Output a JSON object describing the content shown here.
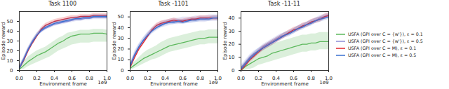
{
  "chart_data": [
    {
      "type": "line",
      "title": "Task 1100",
      "xlabel": "Environment frame",
      "ylabel": "Episode reward",
      "annotations": [
        "1e9"
      ],
      "grid": false,
      "x": [
        0,
        0.05,
        0.1,
        0.15,
        0.2,
        0.25,
        0.3,
        0.35,
        0.4,
        0.45,
        0.5,
        0.55,
        0.6,
        0.65,
        0.7,
        0.75,
        0.8,
        0.85,
        0.9,
        0.95,
        1.0
      ],
      "xlim": [
        0,
        1
      ],
      "xticks": [
        {
          "value": 0,
          "label": "0.0"
        },
        {
          "value": 0.2,
          "label": "0.2"
        },
        {
          "value": 0.4,
          "label": "0.4"
        },
        {
          "value": 0.6,
          "label": "0.6"
        },
        {
          "value": 0.8,
          "label": "0.8"
        },
        {
          "value": 1,
          "label": "1.0"
        }
      ],
      "ylim": [
        0,
        60
      ],
      "yticks": [
        0,
        10,
        20,
        30,
        40,
        50
      ],
      "series": [
        {
          "name": "USFA (GPI over C = {w'}), ε = 0.1",
          "color": "#5cb85c",
          "values": [
            1,
            5,
            9,
            12,
            15,
            17,
            19,
            22,
            25,
            28,
            30,
            33,
            35,
            36,
            37,
            37,
            37,
            38,
            38,
            38,
            37
          ],
          "lower": [
            0,
            1,
            4,
            6,
            8,
            10,
            12,
            14,
            17,
            20,
            22,
            24,
            26,
            27,
            28,
            28,
            28,
            29,
            29,
            29,
            29
          ],
          "upper": [
            3,
            9,
            14,
            17,
            20,
            22,
            24,
            27,
            30,
            33,
            35,
            38,
            39,
            40,
            41,
            41,
            41,
            42,
            42,
            42,
            41
          ]
        },
        {
          "name": "USFA (GPI over C = {w'}), ε = 0.5",
          "color": "#8e8ed6",
          "values": [
            3,
            12,
            22,
            30,
            36,
            40,
            43,
            45,
            47,
            48,
            49,
            50,
            51,
            52,
            52,
            53,
            53,
            54,
            54,
            54,
            54
          ],
          "lower": [
            1,
            10,
            20,
            28,
            34,
            38,
            41,
            43,
            45,
            46,
            47,
            48,
            49,
            50,
            50,
            51,
            51,
            52,
            52,
            52,
            52
          ],
          "upper": [
            5,
            14,
            24,
            32,
            38,
            42,
            45,
            47,
            49,
            50,
            51,
            52,
            53,
            54,
            54,
            55,
            55,
            56,
            56,
            56,
            56
          ]
        },
        {
          "name": "USFA (GPI over C = M), ε = 0.1",
          "color": "#e2252b",
          "values": [
            2,
            10,
            20,
            28,
            35,
            42,
            46,
            48,
            50,
            51,
            52,
            53,
            54,
            54,
            55,
            55,
            55,
            56,
            56,
            56,
            56
          ],
          "lower": [
            0,
            8,
            18,
            26,
            33,
            40,
            44,
            46,
            48,
            49,
            50,
            51,
            52,
            52,
            53,
            53,
            53,
            54,
            54,
            54,
            54
          ],
          "upper": [
            4,
            12,
            22,
            30,
            37,
            44,
            48,
            50,
            52,
            53,
            54,
            55,
            56,
            56,
            57,
            57,
            57,
            58,
            58,
            58,
            58
          ]
        },
        {
          "name": "USFA (GPI over C = M), ε = 0.5",
          "color": "#3a6fd0",
          "values": [
            2,
            11,
            21,
            29,
            36,
            41,
            44,
            46,
            48,
            49,
            50,
            51,
            52,
            53,
            53,
            54,
            54,
            55,
            55,
            55,
            55
          ],
          "lower": [
            0,
            9,
            19,
            27,
            34,
            39,
            42,
            44,
            46,
            47,
            48,
            49,
            50,
            51,
            51,
            52,
            52,
            53,
            53,
            53,
            53
          ],
          "upper": [
            4,
            13,
            23,
            31,
            38,
            43,
            46,
            48,
            50,
            51,
            52,
            53,
            54,
            55,
            55,
            56,
            56,
            57,
            57,
            57,
            57
          ]
        }
      ]
    },
    {
      "type": "line",
      "title": "Task -1101",
      "xlabel": "Environment frame",
      "ylabel": "Episode reward",
      "annotations": [
        "1e9"
      ],
      "grid": false,
      "x": [
        0,
        0.05,
        0.1,
        0.15,
        0.2,
        0.25,
        0.3,
        0.35,
        0.4,
        0.45,
        0.5,
        0.55,
        0.6,
        0.65,
        0.7,
        0.75,
        0.8,
        0.85,
        0.9,
        0.95,
        1.0
      ],
      "xlim": [
        0,
        1
      ],
      "xticks": [
        {
          "value": 0,
          "label": "0.0"
        },
        {
          "value": 0.2,
          "label": "0.2"
        },
        {
          "value": 0.4,
          "label": "0.4"
        },
        {
          "value": 0.6,
          "label": "0.6"
        },
        {
          "value": 0.8,
          "label": "0.8"
        },
        {
          "value": 1,
          "label": "1.0"
        }
      ],
      "ylim": [
        0,
        55
      ],
      "yticks": [
        0,
        10,
        20,
        30,
        40,
        50
      ],
      "series": [
        {
          "name": "USFA (GPI over C = {w'}), ε = 0.1",
          "color": "#5cb85c",
          "values": [
            2,
            5,
            8,
            11,
            13,
            15,
            17,
            19,
            21,
            23,
            24,
            25,
            26,
            27,
            28,
            29,
            30,
            30,
            31,
            31,
            31
          ],
          "lower": [
            0,
            2,
            4,
            6,
            8,
            10,
            11,
            13,
            15,
            17,
            18,
            19,
            20,
            21,
            22,
            23,
            24,
            24,
            25,
            25,
            25
          ],
          "upper": [
            4,
            8,
            12,
            16,
            19,
            21,
            23,
            26,
            28,
            30,
            31,
            32,
            33,
            34,
            35,
            36,
            37,
            37,
            38,
            38,
            38
          ]
        },
        {
          "name": "USFA (GPI over C = {w'}), ε = 0.5",
          "color": "#8e8ed6",
          "values": [
            5,
            15,
            22,
            28,
            33,
            37,
            40,
            43,
            44,
            45,
            46,
            46,
            47,
            47,
            47,
            48,
            48,
            48,
            49,
            49,
            49
          ],
          "lower": [
            3,
            12,
            19,
            25,
            30,
            34,
            37,
            40,
            41,
            42,
            43,
            43,
            44,
            44,
            44,
            45,
            45,
            45,
            46,
            46,
            46
          ],
          "upper": [
            7,
            18,
            25,
            31,
            36,
            40,
            43,
            46,
            47,
            48,
            49,
            49,
            50,
            50,
            50,
            51,
            51,
            51,
            52,
            52,
            52
          ]
        },
        {
          "name": "USFA (GPI over C = M), ε = 0.1",
          "color": "#e2252b",
          "values": [
            3,
            12,
            20,
            26,
            32,
            38,
            42,
            44,
            45,
            46,
            47,
            46,
            46,
            47,
            48,
            48,
            49,
            49,
            49,
            49,
            49
          ],
          "lower": [
            1,
            10,
            18,
            24,
            30,
            36,
            40,
            42,
            43,
            44,
            45,
            44,
            44,
            45,
            46,
            46,
            47,
            47,
            47,
            47,
            47
          ],
          "upper": [
            5,
            14,
            22,
            28,
            34,
            40,
            44,
            46,
            47,
            48,
            49,
            48,
            48,
            49,
            50,
            50,
            51,
            51,
            51,
            51,
            51
          ]
        },
        {
          "name": "USFA (GPI over C = M), ε = 0.5",
          "color": "#3a6fd0",
          "values": [
            4,
            14,
            22,
            28,
            33,
            37,
            40,
            42,
            44,
            45,
            45,
            46,
            45,
            46,
            47,
            47,
            48,
            48,
            48,
            49,
            49
          ],
          "lower": [
            2,
            12,
            20,
            26,
            31,
            35,
            38,
            40,
            42,
            43,
            43,
            44,
            43,
            44,
            45,
            45,
            46,
            46,
            46,
            47,
            47
          ],
          "upper": [
            6,
            16,
            24,
            30,
            35,
            39,
            42,
            44,
            46,
            47,
            47,
            48,
            47,
            48,
            49,
            49,
            50,
            50,
            50,
            51,
            51
          ]
        }
      ]
    },
    {
      "type": "line",
      "title": "Task -11-11",
      "xlabel": "Environment frame",
      "ylabel": "Episode reward",
      "annotations": [
        "1e9"
      ],
      "grid": false,
      "legend": "right",
      "x": [
        0,
        0.05,
        0.1,
        0.15,
        0.2,
        0.25,
        0.3,
        0.35,
        0.4,
        0.45,
        0.5,
        0.55,
        0.6,
        0.65,
        0.7,
        0.75,
        0.8,
        0.85,
        0.9,
        0.95,
        1.0
      ],
      "xlim": [
        0,
        1
      ],
      "xticks": [
        {
          "value": 0,
          "label": "0.0"
        },
        {
          "value": 0.2,
          "label": "0.2"
        },
        {
          "value": 0.4,
          "label": "0.4"
        },
        {
          "value": 0.6,
          "label": "0.6"
        },
        {
          "value": 0.8,
          "label": "0.8"
        },
        {
          "value": 1,
          "label": "1.0"
        }
      ],
      "ylim": [
        0,
        45
      ],
      "yticks": [
        0,
        10,
        20,
        30,
        40
      ],
      "series": [
        {
          "name": "USFA (GPI over C = {w'}), ε = 0.1",
          "color": "#5cb85c",
          "values": [
            0,
            3,
            5,
            7,
            9,
            10,
            11,
            13,
            14,
            15,
            16,
            17,
            18,
            19,
            20,
            20,
            21,
            21,
            22,
            22,
            22
          ],
          "lower": [
            0,
            0,
            1,
            2,
            4,
            5,
            6,
            7,
            8,
            9,
            10,
            11,
            12,
            13,
            14,
            14,
            15,
            15,
            16,
            16,
            16
          ],
          "upper": [
            2,
            6,
            9,
            12,
            15,
            16,
            18,
            20,
            21,
            22,
            23,
            24,
            25,
            26,
            27,
            27,
            28,
            28,
            29,
            29,
            29
          ]
        },
        {
          "name": "USFA (GPI over C = {w'}), ε = 0.5",
          "color": "#8e8ed6",
          "values": [
            2,
            6,
            10,
            13,
            15,
            18,
            20,
            22,
            24,
            26,
            27,
            29,
            30,
            32,
            34,
            35,
            37,
            38,
            40,
            41,
            42
          ],
          "lower": [
            0,
            4,
            8,
            11,
            13,
            16,
            18,
            20,
            22,
            24,
            25,
            27,
            28,
            30,
            32,
            33,
            35,
            36,
            38,
            39,
            40
          ],
          "upper": [
            4,
            8,
            12,
            15,
            17,
            20,
            22,
            24,
            26,
            28,
            29,
            31,
            32,
            34,
            36,
            37,
            39,
            40,
            42,
            43,
            44
          ]
        },
        {
          "name": "USFA (GPI over C = M), ε = 0.1",
          "color": "#e2252b",
          "values": [
            0,
            4,
            8,
            11,
            14,
            17,
            19,
            21,
            23,
            25,
            27,
            29,
            31,
            32,
            34,
            35,
            37,
            38,
            39,
            41,
            42
          ],
          "lower": [
            0,
            2,
            6,
            9,
            12,
            15,
            17,
            19,
            21,
            23,
            25,
            27,
            29,
            30,
            32,
            33,
            35,
            36,
            37,
            39,
            40
          ],
          "upper": [
            2,
            6,
            10,
            13,
            16,
            19,
            21,
            23,
            25,
            27,
            29,
            31,
            33,
            34,
            36,
            37,
            39,
            40,
            41,
            43,
            44
          ]
        },
        {
          "name": "USFA (GPI over C = M), ε = 0.5",
          "color": "#3a6fd0",
          "values": [
            1,
            5,
            9,
            12,
            15,
            17,
            19,
            21,
            23,
            25,
            27,
            28,
            30,
            32,
            33,
            35,
            36,
            38,
            39,
            40,
            41
          ],
          "lower": [
            0,
            3,
            7,
            10,
            13,
            15,
            17,
            19,
            21,
            23,
            25,
            26,
            28,
            30,
            31,
            33,
            34,
            36,
            37,
            38,
            39
          ],
          "upper": [
            3,
            7,
            11,
            14,
            17,
            19,
            21,
            23,
            25,
            27,
            29,
            30,
            32,
            34,
            35,
            37,
            38,
            40,
            41,
            42,
            43
          ]
        }
      ]
    }
  ]
}
